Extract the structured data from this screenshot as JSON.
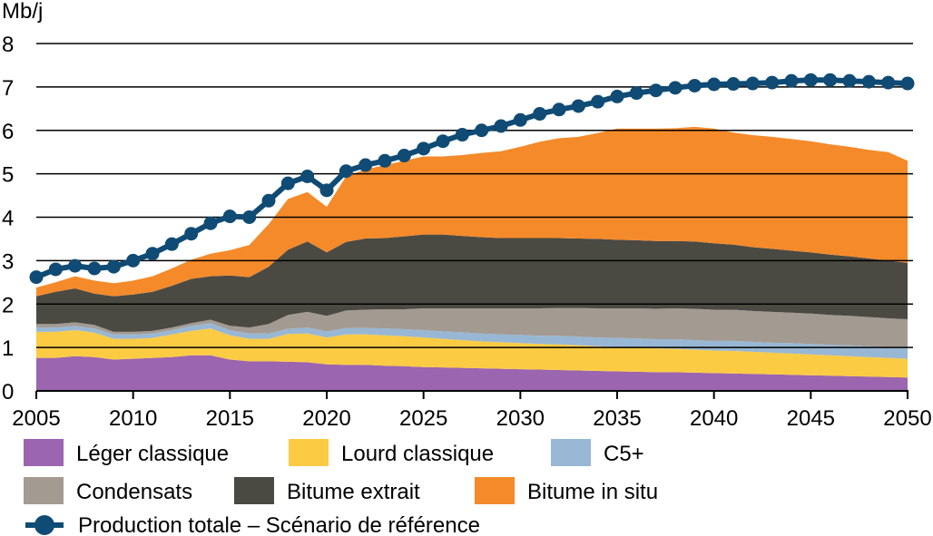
{
  "chart_data": {
    "type": "area",
    "unit_label": "Mb/j",
    "xlabel": "",
    "ylabel": "",
    "xlim": [
      2005,
      2050
    ],
    "ylim": [
      0,
      8
    ],
    "y_ticks": [
      0,
      1,
      2,
      3,
      4,
      5,
      6,
      7,
      8
    ],
    "x_ticks": [
      2005,
      2010,
      2015,
      2020,
      2025,
      2030,
      2035,
      2040,
      2045,
      2050
    ],
    "grid": true,
    "legend_position": "bottom",
    "x": [
      2005,
      2006,
      2007,
      2008,
      2009,
      2010,
      2011,
      2012,
      2013,
      2014,
      2015,
      2016,
      2017,
      2018,
      2019,
      2020,
      2021,
      2022,
      2023,
      2024,
      2025,
      2026,
      2027,
      2028,
      2029,
      2030,
      2031,
      2032,
      2033,
      2034,
      2035,
      2036,
      2037,
      2038,
      2039,
      2040,
      2041,
      2042,
      2043,
      2044,
      2045,
      2046,
      2047,
      2048,
      2049,
      2050
    ],
    "series": [
      {
        "name": "Léger classique",
        "color": "#9B65AF",
        "values": [
          0.76,
          0.76,
          0.8,
          0.78,
          0.72,
          0.74,
          0.76,
          0.78,
          0.82,
          0.82,
          0.72,
          0.68,
          0.68,
          0.67,
          0.66,
          0.61,
          0.6,
          0.6,
          0.58,
          0.57,
          0.55,
          0.54,
          0.53,
          0.52,
          0.51,
          0.5,
          0.49,
          0.48,
          0.47,
          0.46,
          0.45,
          0.44,
          0.43,
          0.43,
          0.42,
          0.41,
          0.4,
          0.39,
          0.38,
          0.37,
          0.36,
          0.35,
          0.34,
          0.33,
          0.32,
          0.31
        ]
      },
      {
        "name": "Lourd classique",
        "color": "#FCCB44",
        "values": [
          0.6,
          0.6,
          0.6,
          0.56,
          0.48,
          0.46,
          0.46,
          0.52,
          0.56,
          0.62,
          0.56,
          0.52,
          0.52,
          0.64,
          0.66,
          0.62,
          0.7,
          0.7,
          0.7,
          0.69,
          0.68,
          0.66,
          0.64,
          0.62,
          0.61,
          0.6,
          0.59,
          0.59,
          0.58,
          0.57,
          0.56,
          0.56,
          0.55,
          0.54,
          0.53,
          0.52,
          0.52,
          0.51,
          0.5,
          0.49,
          0.48,
          0.47,
          0.46,
          0.45,
          0.44,
          0.43
        ]
      },
      {
        "name": "C5+",
        "color": "#98B7D4",
        "values": [
          0.1,
          0.1,
          0.1,
          0.1,
          0.1,
          0.1,
          0.1,
          0.1,
          0.12,
          0.12,
          0.12,
          0.12,
          0.12,
          0.12,
          0.14,
          0.14,
          0.15,
          0.15,
          0.16,
          0.16,
          0.17,
          0.17,
          0.18,
          0.18,
          0.18,
          0.19,
          0.19,
          0.2,
          0.2,
          0.2,
          0.21,
          0.21,
          0.21,
          0.22,
          0.22,
          0.22,
          0.23,
          0.23,
          0.23,
          0.24,
          0.24,
          0.24,
          0.25,
          0.25,
          0.25,
          0.26
        ]
      },
      {
        "name": "Condensats",
        "color": "#A39A92",
        "values": [
          0.08,
          0.08,
          0.08,
          0.08,
          0.06,
          0.06,
          0.06,
          0.06,
          0.06,
          0.08,
          0.1,
          0.14,
          0.22,
          0.32,
          0.36,
          0.36,
          0.4,
          0.42,
          0.44,
          0.46,
          0.5,
          0.53,
          0.55,
          0.58,
          0.6,
          0.61,
          0.63,
          0.64,
          0.66,
          0.67,
          0.68,
          0.69,
          0.7,
          0.71,
          0.72,
          0.72,
          0.72,
          0.71,
          0.71,
          0.7,
          0.7,
          0.69,
          0.68,
          0.67,
          0.66,
          0.65
        ]
      },
      {
        "name": "Bitume extrait",
        "color": "#4A4A43",
        "values": [
          0.64,
          0.74,
          0.78,
          0.72,
          0.82,
          0.86,
          0.9,
          0.96,
          1.02,
          1.0,
          1.16,
          1.16,
          1.32,
          1.5,
          1.62,
          1.46,
          1.58,
          1.64,
          1.64,
          1.68,
          1.7,
          1.7,
          1.67,
          1.64,
          1.62,
          1.62,
          1.62,
          1.61,
          1.6,
          1.6,
          1.58,
          1.57,
          1.56,
          1.55,
          1.55,
          1.53,
          1.5,
          1.47,
          1.45,
          1.43,
          1.41,
          1.39,
          1.37,
          1.35,
          1.33,
          1.3
        ]
      },
      {
        "name": "Bitume in situ",
        "color": "#F58A2A",
        "values": [
          0.2,
          0.22,
          0.28,
          0.3,
          0.3,
          0.32,
          0.36,
          0.4,
          0.44,
          0.52,
          0.58,
          0.74,
          0.98,
          1.17,
          1.14,
          1.05,
          1.51,
          1.59,
          1.68,
          1.74,
          1.8,
          1.8,
          1.86,
          1.94,
          2.0,
          2.1,
          2.22,
          2.3,
          2.34,
          2.44,
          2.56,
          2.57,
          2.59,
          2.6,
          2.64,
          2.64,
          2.58,
          2.58,
          2.58,
          2.57,
          2.56,
          2.54,
          2.52,
          2.5,
          2.5,
          2.35
        ]
      }
    ],
    "total": {
      "name": "Production totale – Scénario de référence",
      "color": "#0F4B74",
      "values": [
        2.62,
        2.8,
        2.88,
        2.82,
        2.86,
        3.0,
        3.16,
        3.38,
        3.62,
        3.86,
        4.02,
        4.0,
        4.38,
        4.78,
        4.94,
        4.62,
        5.06,
        5.2,
        5.3,
        5.42,
        5.58,
        5.75,
        5.9,
        6.0,
        6.1,
        6.24,
        6.38,
        6.48,
        6.56,
        6.66,
        6.78,
        6.86,
        6.92,
        6.98,
        7.03,
        7.06,
        7.07,
        7.08,
        7.1,
        7.14,
        7.16,
        7.16,
        7.14,
        7.12,
        7.1,
        7.08
      ]
    }
  }
}
